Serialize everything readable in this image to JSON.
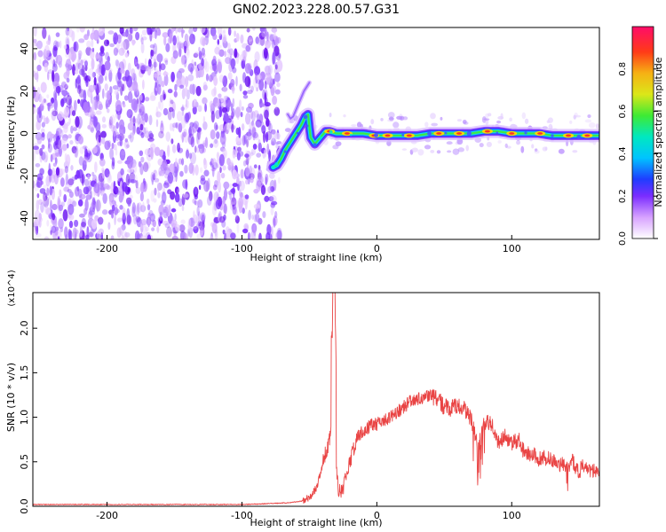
{
  "chart_data": [
    {
      "type": "heatmap",
      "title": "GN02.2023.228.00.57.G31",
      "xlabel": "Height of straight line (km)",
      "ylabel": "Frequency (Hz)",
      "xlim": [
        -255,
        165
      ],
      "ylim": [
        -50,
        50
      ],
      "x_ticks": [
        -200,
        -100,
        0,
        100
      ],
      "y_ticks": [
        -40,
        -20,
        0,
        20,
        40
      ],
      "x_tick_labels": [
        "-200",
        "-100",
        "0",
        "100"
      ],
      "y_tick_labels": [
        "-40",
        "-20",
        "0",
        "20",
        "40"
      ],
      "colorbar": {
        "label": "Normalized spectral amplitude",
        "min": 0.0,
        "max": 1.0,
        "ticks": [
          0.0,
          0.2,
          0.4,
          0.6,
          0.8
        ],
        "tick_labels": [
          "0.0",
          "0.2",
          "0.4",
          "0.6",
          "0.8"
        ]
      },
      "noise_region": {
        "x_range": [
          -255,
          -72
        ],
        "y_range": [
          -50,
          50
        ]
      },
      "signal_track": [
        [
          -77,
          -16
        ],
        [
          -74,
          -15
        ],
        [
          -71,
          -12
        ],
        [
          -68,
          -8
        ],
        [
          -64,
          -4
        ],
        [
          -60,
          0
        ],
        [
          -56,
          4
        ],
        [
          -53,
          8
        ],
        [
          -51,
          9
        ],
        [
          -50,
          3
        ],
        [
          -49,
          -2
        ],
        [
          -46,
          -5
        ],
        [
          -42,
          -2
        ],
        [
          -38,
          1
        ],
        [
          -35,
          1
        ],
        [
          -30,
          0
        ],
        [
          -20,
          0
        ],
        [
          -10,
          0
        ],
        [
          0,
          -1
        ],
        [
          10,
          -1
        ],
        [
          20,
          -1
        ],
        [
          30,
          -1
        ],
        [
          40,
          0
        ],
        [
          50,
          0
        ],
        [
          60,
          0
        ],
        [
          70,
          0
        ],
        [
          80,
          1
        ],
        [
          90,
          1
        ],
        [
          100,
          0
        ],
        [
          110,
          0
        ],
        [
          120,
          0
        ],
        [
          130,
          -1
        ],
        [
          140,
          -1
        ],
        [
          150,
          -1
        ],
        [
          160,
          -1
        ],
        [
          165,
          -1
        ]
      ],
      "strong_peaks": [
        [
          -35,
          1
        ],
        [
          -22,
          0
        ],
        [
          -2,
          -1
        ],
        [
          8,
          -1
        ],
        [
          24,
          -1
        ],
        [
          46,
          0
        ],
        [
          61,
          0
        ],
        [
          82,
          1
        ],
        [
          100,
          0
        ],
        [
          121,
          0
        ],
        [
          142,
          -1
        ],
        [
          156,
          -1
        ]
      ],
      "branch": [
        [
          -66,
          9
        ],
        [
          -64,
          7
        ],
        [
          -62,
          8
        ],
        [
          -60,
          11
        ],
        [
          -58,
          14
        ],
        [
          -56,
          17
        ],
        [
          -54,
          20
        ],
        [
          -52,
          22
        ],
        [
          -50,
          24
        ]
      ]
    },
    {
      "type": "line",
      "xlabel": "Height of straight line (km)",
      "ylabel": "SNR (10 * v/v)",
      "y_scale_label": "(x10^4)",
      "xlim": [
        -255,
        165
      ],
      "ylim": [
        0.0,
        2.4
      ],
      "x_ticks": [
        -200,
        -100,
        0,
        100
      ],
      "y_ticks": [
        0.0,
        0.5,
        1.0,
        1.5,
        2.0
      ],
      "x_tick_labels": [
        "-200",
        "-100",
        "0",
        "100"
      ],
      "y_tick_labels": [
        "0.0",
        "0.5",
        "1.0",
        "1.5",
        "2.0"
      ],
      "series": [
        {
          "color": "#e83a3a",
          "x": [
            -255,
            -220,
            -180,
            -140,
            -100,
            -80,
            -65,
            -55,
            -50,
            -45,
            -42,
            -40,
            -38,
            -35,
            -33,
            -32,
            -31,
            -30,
            -28,
            -25,
            -20,
            -15,
            -10,
            -5,
            0,
            5,
            10,
            15,
            20,
            25,
            30,
            35,
            40,
            45,
            50,
            55,
            60,
            65,
            70,
            75,
            80,
            85,
            90,
            95,
            100,
            105,
            110,
            115,
            120,
            125,
            130,
            135,
            140,
            145,
            150,
            155,
            160,
            165
          ],
          "y": [
            0.02,
            0.02,
            0.02,
            0.02,
            0.02,
            0.03,
            0.04,
            0.06,
            0.1,
            0.2,
            0.35,
            0.5,
            0.6,
            0.75,
            0.9,
            2.35,
            1.3,
            0.4,
            0.15,
            0.2,
            0.5,
            0.75,
            0.85,
            0.9,
            0.92,
            0.95,
            1.0,
            1.05,
            1.12,
            1.18,
            1.2,
            1.22,
            1.25,
            1.2,
            1.12,
            1.1,
            1.15,
            1.08,
            0.98,
            0.65,
            0.95,
            0.92,
            0.72,
            0.8,
            0.7,
            0.75,
            0.58,
            0.6,
            0.52,
            0.55,
            0.5,
            0.48,
            0.45,
            0.5,
            0.4,
            0.48,
            0.38,
            0.42
          ]
        }
      ]
    }
  ],
  "icons": {
    "colorbar": "colorbar-icon"
  }
}
